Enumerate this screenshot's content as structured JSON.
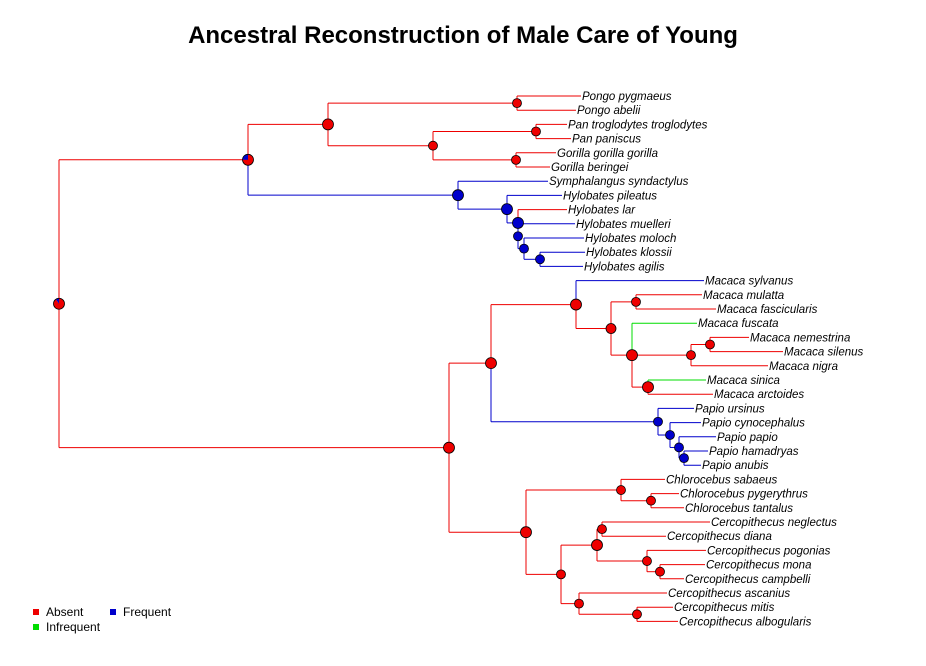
{
  "title": "Ancestral Reconstruction of Male Care of Young",
  "colors": {
    "Absent": "#ee0000",
    "Frequent": "#0000cc",
    "Infrequent": "#00dd00"
  },
  "legend": [
    {
      "label": "Absent",
      "state": "Absent"
    },
    {
      "label": "Frequent",
      "state": "Frequent"
    },
    {
      "label": "Infrequent",
      "state": "Infrequent"
    }
  ],
  "tree": {
    "tips": [
      {
        "label": "Pongo pygmaeus",
        "state": "Absent"
      },
      {
        "label": "Pongo abelii",
        "state": "Absent"
      },
      {
        "label": "Pan troglodytes troglodytes",
        "state": "Absent"
      },
      {
        "label": "Pan paniscus",
        "state": "Absent"
      },
      {
        "label": "Gorilla gorilla gorilla",
        "state": "Absent"
      },
      {
        "label": "Gorilla beringei",
        "state": "Absent"
      },
      {
        "label": "Symphalangus syndactylus",
        "state": "Frequent"
      },
      {
        "label": "Hylobates pileatus",
        "state": "Frequent"
      },
      {
        "label": "Hylobates lar",
        "state": "Absent"
      },
      {
        "label": "Hylobates muelleri",
        "state": "Frequent"
      },
      {
        "label": "Hylobates moloch",
        "state": "Frequent"
      },
      {
        "label": "Hylobates klossii",
        "state": "Frequent"
      },
      {
        "label": "Hylobates agilis",
        "state": "Frequent"
      },
      {
        "label": "Macaca sylvanus",
        "state": "Frequent"
      },
      {
        "label": "Macaca mulatta",
        "state": "Absent"
      },
      {
        "label": "Macaca fascicularis",
        "state": "Absent"
      },
      {
        "label": "Macaca fuscata",
        "state": "Infrequent"
      },
      {
        "label": "Macaca nemestrina",
        "state": "Absent"
      },
      {
        "label": "Macaca silenus",
        "state": "Absent"
      },
      {
        "label": "Macaca nigra",
        "state": "Absent"
      },
      {
        "label": "Macaca sinica",
        "state": "Infrequent"
      },
      {
        "label": "Macaca arctoides",
        "state": "Absent"
      },
      {
        "label": "Papio ursinus",
        "state": "Frequent"
      },
      {
        "label": "Papio cynocephalus",
        "state": "Frequent"
      },
      {
        "label": "Papio papio",
        "state": "Frequent"
      },
      {
        "label": "Papio hamadryas",
        "state": "Frequent"
      },
      {
        "label": "Papio anubis",
        "state": "Frequent"
      },
      {
        "label": "Chlorocebus sabaeus",
        "state": "Absent"
      },
      {
        "label": "Chlorocebus pygerythrus",
        "state": "Absent"
      },
      {
        "label": "Chlorocebus tantalus",
        "state": "Absent"
      },
      {
        "label": "Cercopithecus neglectus",
        "state": "Absent"
      },
      {
        "label": "Cercopithecus diana",
        "state": "Absent"
      },
      {
        "label": "Cercopithecus pogonias",
        "state": "Absent"
      },
      {
        "label": "Cercopithecus mona",
        "state": "Absent"
      },
      {
        "label": "Cercopithecus campbelli",
        "state": "Absent"
      },
      {
        "label": "Cercopithecus ascanius",
        "state": "Absent"
      },
      {
        "label": "Cercopithecus mitis",
        "state": "Absent"
      },
      {
        "label": "Cercopithecus albogularis",
        "state": "Absent"
      }
    ],
    "nodes": [
      {
        "id": "root",
        "parent": null,
        "state": "Absent",
        "pie": {
          "Absent": 0.9,
          "Frequent": 0.1
        }
      },
      {
        "id": "hominoids",
        "parent": "root",
        "state": "Absent",
        "pie": {
          "Absent": 0.75,
          "Frequent": 0.25
        }
      },
      {
        "id": "greatapes",
        "parent": "hominoids",
        "state": "Absent"
      },
      {
        "id": "pongo",
        "parent": "greatapes",
        "state": "Absent",
        "children_tips": [
          0,
          1
        ]
      },
      {
        "id": "african",
        "parent": "greatapes",
        "state": "Absent"
      },
      {
        "id": "pan",
        "parent": "african",
        "state": "Absent",
        "children_tips": [
          2,
          3
        ]
      },
      {
        "id": "gorilla",
        "parent": "african",
        "state": "Absent",
        "children_tips": [
          4,
          5
        ]
      },
      {
        "id": "gibbons",
        "parent": "hominoids",
        "state": "Frequent",
        "children_tips": [
          6
        ]
      },
      {
        "id": "hylo1",
        "parent": "gibbons",
        "state": "Frequent",
        "children_tips": [
          7
        ]
      },
      {
        "id": "hylo2",
        "parent": "hylo1",
        "state": "Frequent",
        "children_tips": [
          8
        ]
      },
      {
        "id": "hylo3",
        "parent": "hylo2",
        "state": "Frequent",
        "children_tips": [
          9
        ]
      },
      {
        "id": "hylo4",
        "parent": "hylo3",
        "state": "Frequent",
        "children_tips": [
          10
        ]
      },
      {
        "id": "hylo5",
        "parent": "hylo4",
        "state": "Frequent",
        "children_tips": [
          11,
          12
        ]
      },
      {
        "id": "cercopith",
        "parent": "root",
        "state": "Absent"
      },
      {
        "id": "papionini",
        "parent": "cercopith",
        "state": "Absent"
      },
      {
        "id": "macaca",
        "parent": "papionini",
        "state": "Absent",
        "children_tips": [
          13
        ]
      },
      {
        "id": "mac2",
        "parent": "macaca",
        "state": "Absent"
      },
      {
        "id": "mac_mf",
        "parent": "mac2",
        "state": "Absent",
        "children_tips": [
          14,
          15
        ]
      },
      {
        "id": "mac3",
        "parent": "mac2",
        "state": "Absent",
        "children_tips": [
          16
        ]
      },
      {
        "id": "mac_nem",
        "parent": "mac3",
        "state": "Absent",
        "children_tips": [
          19
        ]
      },
      {
        "id": "mac_ns",
        "parent": "mac_nem",
        "state": "Absent",
        "children_tips": [
          17,
          18
        ]
      },
      {
        "id": "mac_sa",
        "parent": "mac3",
        "state": "Absent",
        "children_tips": [
          20,
          21
        ]
      },
      {
        "id": "papio",
        "parent": "papionini",
        "state": "Frequent",
        "children_tips": [
          22
        ]
      },
      {
        "id": "pap2",
        "parent": "papio",
        "state": "Frequent",
        "children_tips": [
          23
        ]
      },
      {
        "id": "pap3",
        "parent": "pap2",
        "state": "Frequent",
        "children_tips": [
          24
        ]
      },
      {
        "id": "pap4",
        "parent": "pap3",
        "state": "Frequent",
        "children_tips": [
          25,
          26
        ]
      },
      {
        "id": "cercopithecini",
        "parent": "cercopith",
        "state": "Absent"
      },
      {
        "id": "chloro",
        "parent": "cercopithecini",
        "state": "Absent",
        "children_tips": [
          27
        ]
      },
      {
        "id": "chl2",
        "parent": "chloro",
        "state": "Absent",
        "children_tips": [
          28,
          29
        ]
      },
      {
        "id": "cerco",
        "parent": "cercopithecini",
        "state": "Absent"
      },
      {
        "id": "cer2",
        "parent": "cerco",
        "state": "Absent"
      },
      {
        "id": "cer_nd",
        "parent": "cer2",
        "state": "Absent",
        "children_tips": [
          30,
          31
        ]
      },
      {
        "id": "cer_pmc",
        "parent": "cer2",
        "state": "Absent",
        "children_tips": [
          32
        ]
      },
      {
        "id": "cer_mc",
        "parent": "cer_pmc",
        "state": "Absent",
        "children_tips": [
          33,
          34
        ]
      },
      {
        "id": "cer3",
        "parent": "cerco",
        "state": "Absent",
        "children_tips": [
          35
        ]
      },
      {
        "id": "cer_ma",
        "parent": "cer3",
        "state": "Absent",
        "children_tips": [
          36,
          37
        ]
      }
    ]
  }
}
